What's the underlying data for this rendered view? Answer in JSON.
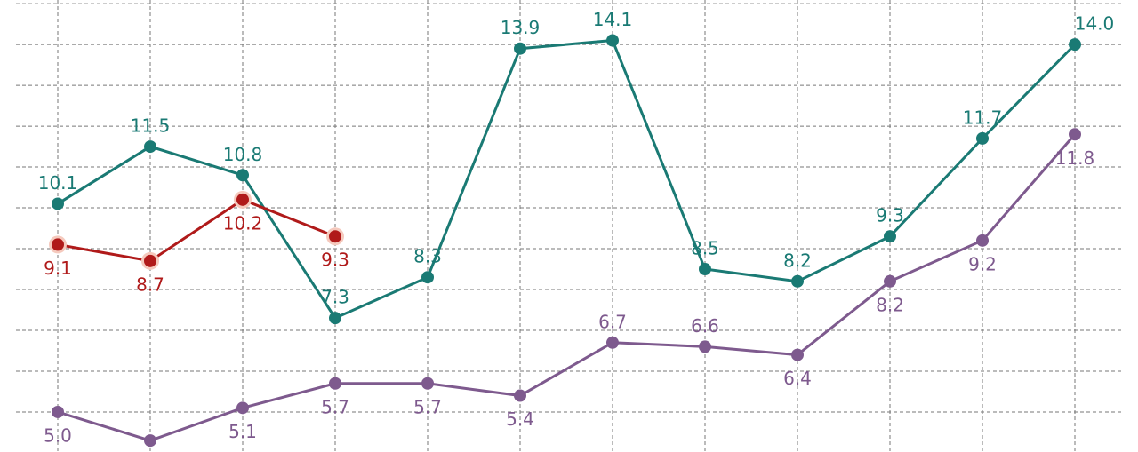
{
  "chart_data": {
    "type": "line",
    "categories": [
      null,
      null,
      null,
      null,
      null,
      null,
      null,
      null,
      null,
      null,
      null,
      null
    ],
    "ylim": [
      4.02,
      15.09
    ],
    "yticks": [
      5,
      6,
      7,
      8,
      9,
      10,
      11,
      12,
      13,
      14,
      15
    ],
    "grid": true,
    "series": [
      {
        "color": "#7e5a8e",
        "values": [
          5.0,
          4.3,
          5.1,
          5.7,
          5.7,
          5.4,
          6.7,
          6.6,
          6.4,
          8.2,
          9.2,
          11.8
        ],
        "value_labels": [
          "5.0",
          null,
          "5.1",
          "5.7",
          "5.7",
          "5.4",
          "6.7",
          "6.6",
          "6.4",
          "8.2",
          "9.2",
          "11.8"
        ]
      },
      {
        "color": "#1a7a74",
        "values": [
          10.1,
          11.5,
          10.8,
          7.3,
          8.3,
          13.9,
          14.1,
          8.5,
          8.2,
          9.3,
          11.7,
          14.0
        ],
        "value_labels": [
          "10.1",
          "11.5",
          "10.8",
          "7.3",
          "8.3",
          "13.9",
          "14.1",
          "8.5",
          "8.2",
          "9.3",
          "11.7",
          "14.0"
        ]
      },
      {
        "color": "#b01a1a",
        "values": [
          9.1,
          8.7,
          10.2,
          9.3,
          null,
          null,
          null,
          null,
          null,
          null,
          null,
          null
        ],
        "value_labels": [
          "9.1",
          "8.7",
          "10.2",
          "9.3",
          null,
          null,
          null,
          null,
          null,
          null,
          null,
          null
        ]
      }
    ]
  }
}
